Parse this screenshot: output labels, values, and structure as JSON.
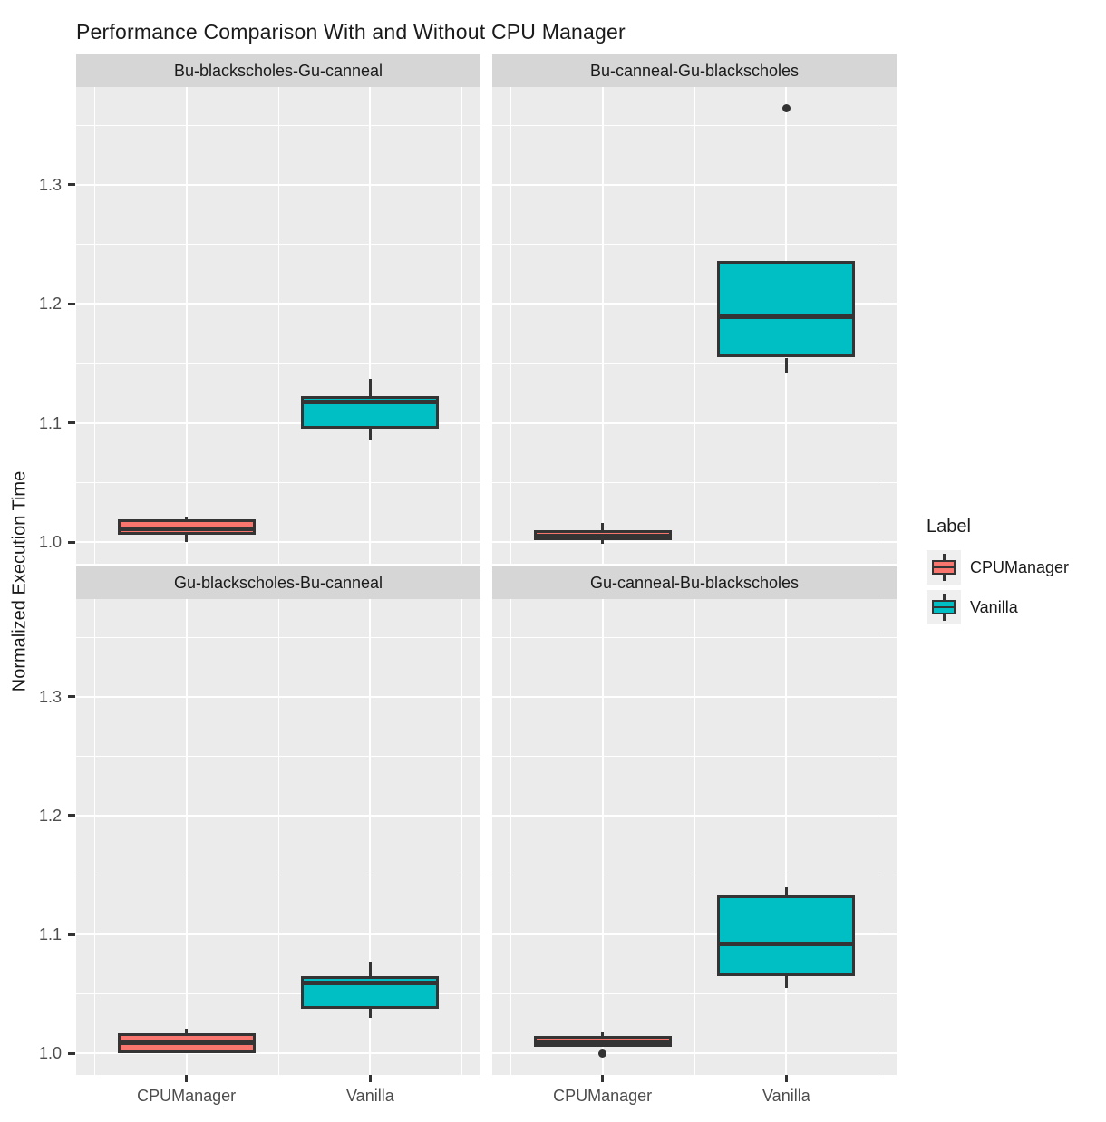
{
  "title": "Performance Comparison With and Without CPU Manager",
  "y_axis": {
    "label": "Normalized Execution Time",
    "tick_labels": [
      "1.3",
      "1.2",
      "1.1",
      "1.0"
    ]
  },
  "x_axis": {
    "categories": [
      "CPUManager",
      "Vanilla"
    ]
  },
  "legend": {
    "title": "Label",
    "entries": [
      {
        "label": "CPUManager",
        "color": "#F8766D"
      },
      {
        "label": "Vanilla",
        "color": "#00BFC4"
      }
    ]
  },
  "colors": {
    "box_stroke": "#343434",
    "panel_bg": "#EBEBEB",
    "strip_bg": "#D6D6D6",
    "grid": "#FFFFFF",
    "tick_text": "#4D4D4D",
    "text": "#1A1A1A",
    "outlier": "#333333",
    "legend_key_bg": "#EFEFEF",
    "cpumanager_fill": "#F8766D",
    "vanilla_fill": "#00BFC4"
  },
  "chart_data": {
    "type": "boxplot",
    "title": "Performance Comparison With and Without CPU Manager",
    "ylabel": "Normalized Execution Time",
    "xlabel": "",
    "ylim": [
      0.982,
      1.382
    ],
    "y_major_ticks": [
      1.0,
      1.1,
      1.2,
      1.3
    ],
    "y_minor_ticks": [
      1.05,
      1.15,
      1.25,
      1.35
    ],
    "categories": [
      "CPUManager",
      "Vanilla"
    ],
    "legend_position": "right",
    "grid": "on",
    "facets": [
      {
        "title": "Bu-blackscholes-Gu-canneal",
        "boxes": [
          {
            "group": "CPUManager",
            "whisker_low": 1.0,
            "q1": 1.006,
            "median": 1.011,
            "q3": 1.019,
            "whisker_high": 1.021,
            "outliers": []
          },
          {
            "group": "Vanilla",
            "whisker_low": 1.086,
            "q1": 1.095,
            "median": 1.118,
            "q3": 1.123,
            "whisker_high": 1.137,
            "outliers": []
          }
        ]
      },
      {
        "title": "Bu-canneal-Gu-blackscholes",
        "boxes": [
          {
            "group": "CPUManager",
            "whisker_low": 0.999,
            "q1": 1.002,
            "median": 1.005,
            "q3": 1.01,
            "whisker_high": 1.016,
            "outliers": []
          },
          {
            "group": "Vanilla",
            "whisker_low": 1.142,
            "q1": 1.155,
            "median": 1.189,
            "q3": 1.236,
            "whisker_high": 1.236,
            "outliers": [
              1.364
            ]
          }
        ]
      },
      {
        "title": "Gu-blackscholes-Bu-canneal",
        "boxes": [
          {
            "group": "CPUManager",
            "whisker_low": 1.0,
            "q1": 1.0,
            "median": 1.009,
            "q3": 1.017,
            "whisker_high": 1.021,
            "outliers": []
          },
          {
            "group": "Vanilla",
            "whisker_low": 1.03,
            "q1": 1.038,
            "median": 1.059,
            "q3": 1.065,
            "whisker_high": 1.077,
            "outliers": []
          }
        ]
      },
      {
        "title": "Gu-canneal-Bu-blackscholes",
        "boxes": [
          {
            "group": "CPUManager",
            "whisker_low": 1.006,
            "q1": 1.006,
            "median": 1.01,
            "q3": 1.015,
            "whisker_high": 1.018,
            "outliers": [
              1.0
            ]
          },
          {
            "group": "Vanilla",
            "whisker_low": 1.055,
            "q1": 1.065,
            "median": 1.092,
            "q3": 1.133,
            "whisker_high": 1.14,
            "outliers": []
          }
        ]
      }
    ]
  }
}
